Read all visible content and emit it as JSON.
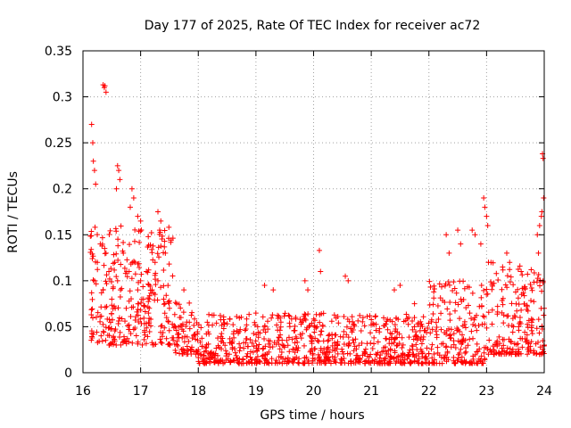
{
  "chart_data": {
    "type": "scatter",
    "title": "Day 177 of 2025, Rate Of TEC Index for receiver ac72",
    "xlabel": "GPS time / hours",
    "ylabel": "ROTI / TECUs",
    "xlim": [
      16,
      24
    ],
    "ylim": [
      0,
      0.35
    ],
    "x_ticks": [
      "16",
      "17",
      "18",
      "19",
      "20",
      "21",
      "22",
      "23",
      "24"
    ],
    "y_ticks": [
      "0",
      "0.05",
      "0.1",
      "0.15",
      "0.2",
      "0.25",
      "0.3",
      "0.35"
    ],
    "grid": true,
    "marker": "+",
    "color": "#ff0000",
    "series": [
      {
        "name": "ROTI",
        "points": [
          [
            16.15,
            0.27
          ],
          [
            16.17,
            0.25
          ],
          [
            16.18,
            0.23
          ],
          [
            16.2,
            0.22
          ],
          [
            16.22,
            0.205
          ],
          [
            16.35,
            0.313
          ],
          [
            16.37,
            0.31
          ],
          [
            16.38,
            0.312
          ],
          [
            16.4,
            0.305
          ],
          [
            16.6,
            0.225
          ],
          [
            16.62,
            0.22
          ],
          [
            16.64,
            0.21
          ],
          [
            16.58,
            0.2
          ],
          [
            16.85,
            0.2
          ],
          [
            16.88,
            0.19
          ],
          [
            16.82,
            0.18
          ],
          [
            16.95,
            0.17
          ],
          [
            17.0,
            0.165
          ],
          [
            17.3,
            0.175
          ],
          [
            17.35,
            0.165
          ],
          [
            17.33,
            0.155
          ],
          [
            16.2,
            0.1
          ],
          [
            16.25,
            0.12
          ],
          [
            16.3,
            0.14
          ],
          [
            16.35,
            0.09
          ],
          [
            16.4,
            0.13
          ],
          [
            16.45,
            0.11
          ],
          [
            16.5,
            0.08
          ],
          [
            16.55,
            0.12
          ],
          [
            16.6,
            0.1
          ],
          [
            16.65,
            0.09
          ],
          [
            16.7,
            0.13
          ],
          [
            16.75,
            0.07
          ],
          [
            16.8,
            0.11
          ],
          [
            16.9,
            0.12
          ],
          [
            16.95,
            0.09
          ],
          [
            17.0,
            0.1
          ],
          [
            17.05,
            0.08
          ],
          [
            17.1,
            0.11
          ],
          [
            17.15,
            0.07
          ],
          [
            17.2,
            0.09
          ],
          [
            17.25,
            0.12
          ],
          [
            17.3,
            0.1
          ],
          [
            17.4,
            0.08
          ],
          [
            17.45,
            0.06
          ],
          [
            17.5,
            0.07
          ],
          [
            17.6,
            0.05
          ],
          [
            17.7,
            0.06
          ],
          [
            17.75,
            0.09
          ],
          [
            17.8,
            0.055
          ],
          [
            19.15,
            0.095
          ],
          [
            19.3,
            0.09
          ],
          [
            19.85,
            0.1
          ],
          [
            19.9,
            0.09
          ],
          [
            20.1,
            0.133
          ],
          [
            20.12,
            0.11
          ],
          [
            20.55,
            0.105
          ],
          [
            20.6,
            0.1
          ],
          [
            21.4,
            0.09
          ],
          [
            21.5,
            0.095
          ],
          [
            21.75,
            0.075
          ],
          [
            22.3,
            0.15
          ],
          [
            22.35,
            0.13
          ],
          [
            22.5,
            0.155
          ],
          [
            22.55,
            0.14
          ],
          [
            22.75,
            0.155
          ],
          [
            22.8,
            0.15
          ],
          [
            22.9,
            0.14
          ],
          [
            22.95,
            0.19
          ],
          [
            22.97,
            0.18
          ],
          [
            23.0,
            0.17
          ],
          [
            23.02,
            0.16
          ],
          [
            23.35,
            0.13
          ],
          [
            23.4,
            0.12
          ],
          [
            23.6,
            0.11
          ],
          [
            23.88,
            0.15
          ],
          [
            23.9,
            0.13
          ],
          [
            23.92,
            0.16
          ],
          [
            23.95,
            0.17
          ],
          [
            23.97,
            0.238
          ],
          [
            23.98,
            0.233
          ],
          [
            23.99,
            0.19
          ],
          [
            23.96,
            0.175
          ],
          [
            24.0,
            0.07
          ],
          [
            24.0,
            0.03
          ]
        ]
      }
    ]
  }
}
